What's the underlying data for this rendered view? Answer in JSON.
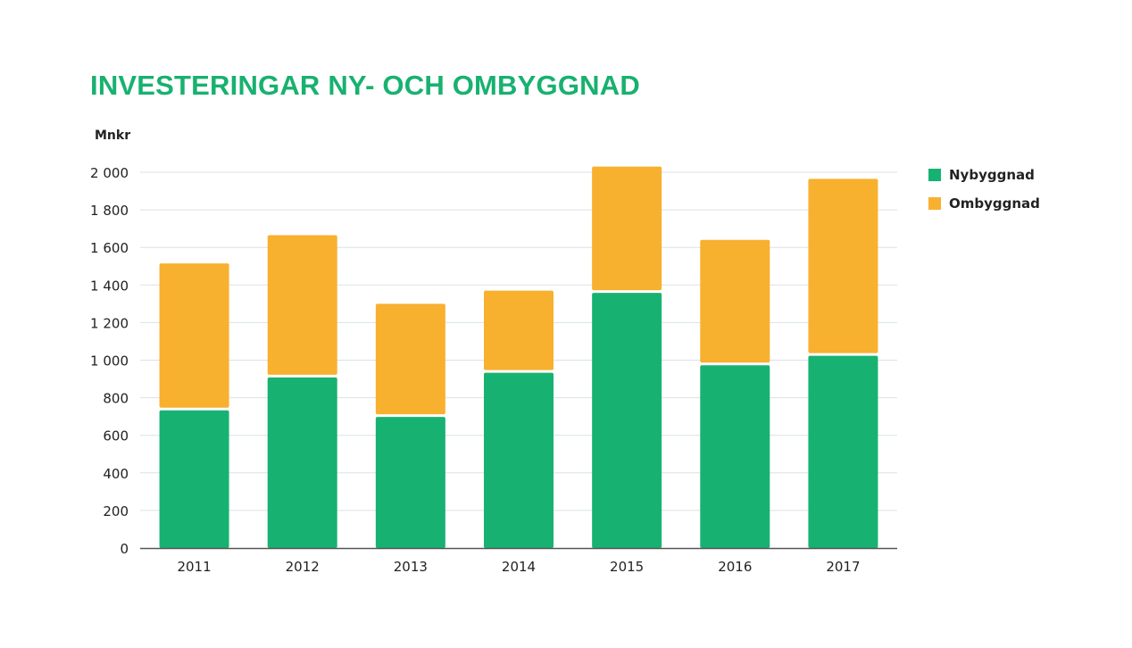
{
  "title": "INVESTERINGAR NY- OCH OMBYGGNAD",
  "unit_label": "Mnkr",
  "colors": {
    "nybyggnad": "#17b272",
    "ombyggnad": "#f8b02f",
    "title": "#18b170",
    "grid": "#d9e2e6",
    "axis": "#555555"
  },
  "legend": {
    "items": [
      {
        "label": "Nybyggnad",
        "color": "#17b272"
      },
      {
        "label": "Ombyggnad",
        "color": "#f8b02f"
      }
    ],
    "position": "right"
  },
  "chart_data": {
    "type": "bar",
    "stacked": true,
    "title": "INVESTERINGAR NY- OCH OMBYGGNAD",
    "ylabel": "Mnkr",
    "xlabel": "",
    "categories": [
      "2011",
      "2012",
      "2013",
      "2014",
      "2015",
      "2016",
      "2017"
    ],
    "series": [
      {
        "name": "Nybyggnad",
        "color": "#17b272",
        "values": [
          740,
          915,
          705,
          940,
          1365,
          980,
          1030
        ]
      },
      {
        "name": "Ombyggnad",
        "color": "#f8b02f",
        "values": [
          775,
          750,
          595,
          430,
          665,
          660,
          935
        ]
      }
    ],
    "ylim": [
      0,
      2000
    ],
    "yticks": [
      0,
      200,
      400,
      600,
      800,
      1000,
      1200,
      1400,
      1600,
      1800,
      2000
    ],
    "ytick_labels": [
      "0",
      "200",
      "400",
      "600",
      "800",
      "1 000",
      "1 200",
      "1 400",
      "1 600",
      "1 800",
      "2 000"
    ],
    "grid": true,
    "legend_position": "right"
  }
}
